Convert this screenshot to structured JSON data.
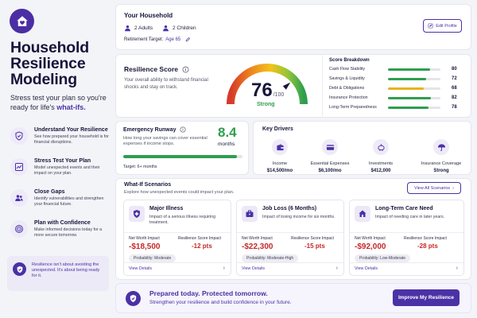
{
  "brand": {
    "title": "Household Resilience Modeling",
    "subtitle_pre": "Stress test your plan so you're ready for life's",
    "subtitle_hl": "what-ifs."
  },
  "features": [
    {
      "title": "Understand Your Resilience",
      "desc": "See how prepared your household is for financial disruptions.",
      "icon": "shield-icon"
    },
    {
      "title": "Stress Test Your Plan",
      "desc": "Model unexpected events and their impact on your plan.",
      "icon": "chart-icon"
    },
    {
      "title": "Close Gaps",
      "desc": "Identify vulnerabilities and strengthen your financial future.",
      "icon": "people-icon"
    },
    {
      "title": "Plan with Confidence",
      "desc": "Make informed decisions today for a more secure tomorrow.",
      "icon": "target-icon"
    }
  ],
  "note": "Resilience isn't about avoiding the unexpected. It's about being ready for it.",
  "household": {
    "title": "Your Household",
    "adults": "2 Adults",
    "children": "2 Children",
    "retirement_label": "Retirement Target:",
    "retirement_value": "Age 65",
    "edit_label": "Edit Profile"
  },
  "score": {
    "title": "Resilience Score",
    "desc": "Your overall ability to withstand financial shocks and stay on track.",
    "value": "76",
    "max": "/100",
    "label": "Strong",
    "fraction": 0.76
  },
  "breakdown": {
    "title": "Score Breakdown",
    "rows": [
      {
        "label": "Cash Flow Stability",
        "value": "80",
        "pct": 80,
        "color": "#2e9e4f"
      },
      {
        "label": "Savings & Liquidity",
        "value": "72",
        "pct": 72,
        "color": "#2e9e4f"
      },
      {
        "label": "Debt & Obligations",
        "value": "68",
        "pct": 68,
        "color": "#e8b21a"
      },
      {
        "label": "Insurance Protection",
        "value": "82",
        "pct": 82,
        "color": "#2e9e4f"
      },
      {
        "label": "Long-Term Preparedness",
        "value": "78",
        "pct": 78,
        "color": "#2e9e4f"
      }
    ]
  },
  "runway": {
    "title": "Emergency Runway",
    "desc": "How long your savings can cover essential expenses if income stops.",
    "value": "8.4",
    "unit": "months",
    "target": "Target: 6+ months",
    "fraction": 0.95
  },
  "drivers": {
    "title": "Key Drivers",
    "items": [
      {
        "label": "Income",
        "value": "$14,500/mo",
        "icon": "wallet-icon"
      },
      {
        "label": "Essential Expenses",
        "value": "$6,100/mo",
        "icon": "card-icon"
      },
      {
        "label": "Investments",
        "value": "$412,000",
        "icon": "piggy-bank-icon"
      },
      {
        "label": "Insurance Coverage",
        "value": "Strong",
        "icon": "umbrella-icon"
      }
    ]
  },
  "scenarios": {
    "title": "What-If Scenarios",
    "desc": "Explore how unexpected events could impact your plan.",
    "view_all": "View All Scenarios",
    "nw_label": "Net Worth Impact",
    "rs_label": "Resilience Score Impact",
    "details_label": "View Details",
    "items": [
      {
        "title": "Major Illness",
        "desc": "Impact of a serious illness requiring treatment.",
        "nw": "-$18,500",
        "rs": "-12 pts",
        "prob": "Probability: Moderate",
        "icon": "medical-icon"
      },
      {
        "title": "Job Loss (6 Months)",
        "desc": "Impact of losing income for six months.",
        "nw": "-$22,300",
        "rs": "-15 pts",
        "prob": "Probability: Moderate-High",
        "icon": "briefcase-icon"
      },
      {
        "title": "Long-Term Care Need",
        "desc": "Impact of needing care in later years.",
        "nw": "-$92,000",
        "rs": "-28 pts",
        "prob": "Probability: Low-Moderate",
        "icon": "house-icon"
      }
    ]
  },
  "cta": {
    "title": "Prepared today. Protected tomorrow.",
    "desc": "Strengthen your resilience and build confidence in your future.",
    "button": "Improve My Resilience"
  },
  "colors": {
    "accent": "#4b31a6",
    "danger": "#c62828",
    "success": "#2e9e4f"
  }
}
